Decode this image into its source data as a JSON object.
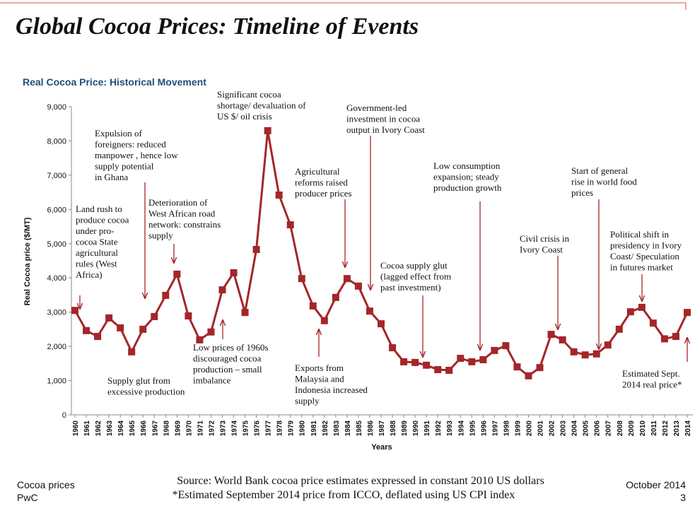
{
  "chart_data": {
    "type": "line",
    "title": "Global Cocoa Prices: Timeline of Events",
    "subtitle": "Real Cocoa Price: Historical Movement",
    "y_label": "Real Cocoa price ($/MT)",
    "x_label": "Years",
    "categories": [
      "1960",
      "1961",
      "1962",
      "1963",
      "1964",
      "1965",
      "1966",
      "1967",
      "1968",
      "1969",
      "1970",
      "1971",
      "1972",
      "1973",
      "1974",
      "1975",
      "1976",
      "1977",
      "1978",
      "1979",
      "1980",
      "1981",
      "1982",
      "1983",
      "1984",
      "1985",
      "1986",
      "1987",
      "1988",
      "1989",
      "1990",
      "1991",
      "1992",
      "1993",
      "1994",
      "1995",
      "1996",
      "1997",
      "1998",
      "1999",
      "2000",
      "2001",
      "2002",
      "2003",
      "2004",
      "2005",
      "2006",
      "2007",
      "2008",
      "2009",
      "2010",
      "2011",
      "2012",
      "2013",
      "2014"
    ],
    "series": [
      {
        "name": "Real Cocoa Price",
        "color": "#a3262a",
        "values": [
          3050,
          2460,
          2290,
          2830,
          2540,
          1840,
          2500,
          2870,
          3490,
          4110,
          2890,
          2190,
          2420,
          3650,
          4150,
          2990,
          4830,
          8300,
          6420,
          5550,
          3980,
          3180,
          2750,
          3430,
          3980,
          3760,
          3030,
          2660,
          1960,
          1550,
          1530,
          1450,
          1320,
          1300,
          1650,
          1550,
          1610,
          1880,
          2020,
          1400,
          1140,
          1380,
          2350,
          2190,
          1840,
          1750,
          1780,
          2040,
          2500,
          3010,
          3140,
          2680,
          2220,
          2290,
          2990
        ]
      }
    ],
    "ylim": [
      0,
      9000
    ],
    "yticks": [
      0,
      {
        "value": 1000,
        "label": "1,000"
      },
      {
        "value": 2000,
        "label": "2,000"
      },
      {
        "value": 3000,
        "label": "3,000"
      },
      {
        "value": 4000,
        "label": "4,000"
      },
      {
        "value": 5000,
        "label": "5,000"
      },
      {
        "value": 6000,
        "label": "6,000"
      },
      {
        "value": 7000,
        "label": "7,000"
      },
      {
        "value": 8000,
        "label": "8,000"
      },
      {
        "value": 9000,
        "label": "9,000"
      }
    ],
    "annotations": [
      {
        "lines": [
          "Land rush to",
          "produce cocoa",
          "under pro-",
          "cocoa State",
          "agricultural",
          "rules (West",
          "Africa)"
        ]
      },
      {
        "lines": [
          "Expulsion of",
          "foreigners: reduced",
          "manpower , hence low",
          "supply potential",
          "in Ghana"
        ]
      },
      {
        "lines": [
          "Deterioration of",
          "West African road",
          "network: constrains",
          "supply"
        ]
      },
      {
        "lines": [
          "Supply glut from",
          "excessive production"
        ]
      },
      {
        "lines": [
          "Low prices of 1960s",
          "discouraged cocoa",
          "production – small",
          "imbalance"
        ]
      },
      {
        "lines": [
          "Significant cocoa",
          "shortage/ devaluation of",
          "US $/ oil crisis"
        ]
      },
      {
        "lines": [
          "Agricultural",
          "reforms raised",
          "producer prices"
        ]
      },
      {
        "lines": [
          "Exports from",
          "Malaysia  and",
          "Indonesia increased",
          "supply"
        ]
      },
      {
        "lines": [
          "Government-led",
          "investment in cocoa",
          "output in Ivory Coast"
        ]
      },
      {
        "lines": [
          "Cocoa supply glut",
          "(lagged effect from",
          "past investment)"
        ]
      },
      {
        "lines": [
          "Low consumption",
          "expansion; steady",
          "production growth"
        ]
      },
      {
        "lines": [
          "Civil crisis in",
          "Ivory Coast"
        ]
      },
      {
        "lines": [
          "Start of general",
          "rise in world food",
          "prices"
        ]
      },
      {
        "lines": [
          "Political shift in",
          "presidency in Ivory",
          "Coast/ Speculation",
          "in futures market"
        ]
      },
      {
        "lines": [
          "Estimated Sept.",
          "2014 real price*"
        ]
      }
    ]
  },
  "footer": {
    "left": [
      "Cocoa prices",
      "PwC"
    ],
    "source": [
      "Source: World Bank cocoa price estimates expressed in constant 2010 US dollars",
      "*Estimated September 2014 price from ICCO, deflated using US CPI index"
    ],
    "date": "October 2014",
    "page": "3"
  }
}
